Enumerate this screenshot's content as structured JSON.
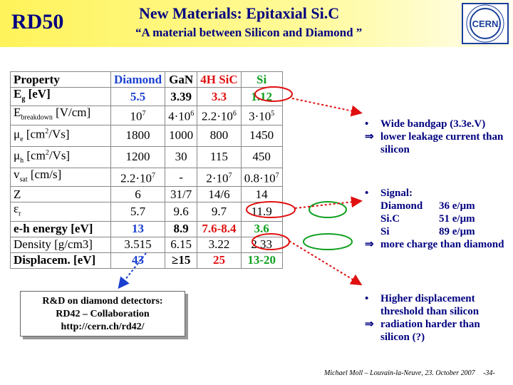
{
  "header": {
    "series_name": "RD50",
    "title": "New Materials:  Epitaxial Si.C",
    "subtitle": "“A material between Silicon and Diamond ”",
    "logo_text": "CERN"
  },
  "table": {
    "columns": [
      {
        "name": "Property",
        "color": "#000000"
      },
      {
        "name": "Diamond",
        "color": "#1a3fd0"
      },
      {
        "name": "GaN",
        "color": "#000000"
      },
      {
        "name": "4H SiC",
        "color": "#e01010"
      },
      {
        "name": "Si",
        "color": "#10a020"
      }
    ],
    "rows": [
      {
        "label": [
          "E",
          {
            "text": "g",
            "pos": "sub"
          },
          " [eV]"
        ],
        "values": [
          "5.5",
          "3.39",
          "3.3",
          "1.12"
        ],
        "emphasis": true
      },
      {
        "label": [
          "E",
          {
            "text": "breakdown",
            "pos": "sub"
          },
          " [V/cm]"
        ],
        "values": [
          [
            "10",
            {
              "text": "7",
              "pos": "sup"
            }
          ],
          [
            "4·10",
            {
              "text": "6",
              "pos": "sup"
            }
          ],
          [
            "2.2·10",
            {
              "text": "6",
              "pos": "sup"
            }
          ],
          [
            "3·10",
            {
              "text": "5",
              "pos": "sup"
            }
          ]
        ],
        "emphasis": false
      },
      {
        "label": [
          "μ",
          {
            "text": "e",
            "pos": "sub"
          },
          " [cm",
          {
            "text": "2",
            "pos": "sup"
          },
          "/Vs]"
        ],
        "values": [
          "1800",
          "1000",
          "800",
          "1450"
        ],
        "emphasis": false
      },
      {
        "label": [
          "μ",
          {
            "text": "h",
            "pos": "sub"
          },
          " [cm",
          {
            "text": "2",
            "pos": "sup"
          },
          "/Vs]"
        ],
        "values": [
          "1200",
          "30",
          "115",
          "450"
        ],
        "emphasis": false
      },
      {
        "label": [
          "v",
          {
            "text": "sat",
            "pos": "sub"
          },
          " [cm/s]"
        ],
        "values": [
          [
            "2.2·10",
            {
              "text": "7",
              "pos": "sup"
            }
          ],
          "-",
          [
            "2·10",
            {
              "text": "7",
              "pos": "sup"
            }
          ],
          [
            "0.8·10",
            {
              "text": "7",
              "pos": "sup"
            }
          ]
        ],
        "emphasis": false
      },
      {
        "label": [
          "Z"
        ],
        "values": [
          "6",
          "31/7",
          "14/6",
          "14"
        ],
        "emphasis": false
      },
      {
        "label": [
          "ε",
          {
            "text": "r",
            "pos": "sub"
          }
        ],
        "values": [
          "5.7",
          "9.6",
          "9.7",
          "11.9"
        ],
        "emphasis": false
      },
      {
        "label": [
          "e-h energy [eV]"
        ],
        "values": [
          "13",
          "8.9",
          "7.6-8.4",
          "3.6"
        ],
        "emphasis": true
      },
      {
        "label": [
          "Density [g/cm3]"
        ],
        "values": [
          "3.515",
          "6.15",
          "3.22",
          "2.33"
        ],
        "emphasis": false
      },
      {
        "label": [
          "Displacem. [eV]"
        ],
        "values": [
          "43",
          "≥15",
          "25",
          "13-20"
        ],
        "emphasis": true
      }
    ]
  },
  "notes": [
    {
      "items": [
        {
          "marker": "•",
          "text": "Wide bandgap (3.3e.V)"
        },
        {
          "marker": "⇒",
          "text": "lower leakage current than silicon"
        }
      ]
    },
    {
      "items": [
        {
          "marker": "•",
          "text": "Signal:"
        }
      ],
      "signal": [
        [
          "Diamond",
          "36 e/μm"
        ],
        [
          "Si.C",
          "51 e/μm"
        ],
        [
          "Si",
          "89 e/μm"
        ]
      ],
      "conclusion": {
        "marker": "⇒",
        "text": "more charge than diamond"
      }
    },
    {
      "items": [
        {
          "marker": "•",
          "text": "Higher displacement threshold  than silicon"
        },
        {
          "marker": "⇒",
          "text": "radiation harder than silicon (?)"
        }
      ]
    }
  ],
  "box": {
    "lines": [
      "R&D on diamond detectors:",
      "RD42 – Collaboration",
      "http://cern.ch/rd42/"
    ]
  },
  "footer": {
    "author": "Michael Moll – Louvain-la-Neuve, 23. October 2007",
    "page": "-34-"
  }
}
